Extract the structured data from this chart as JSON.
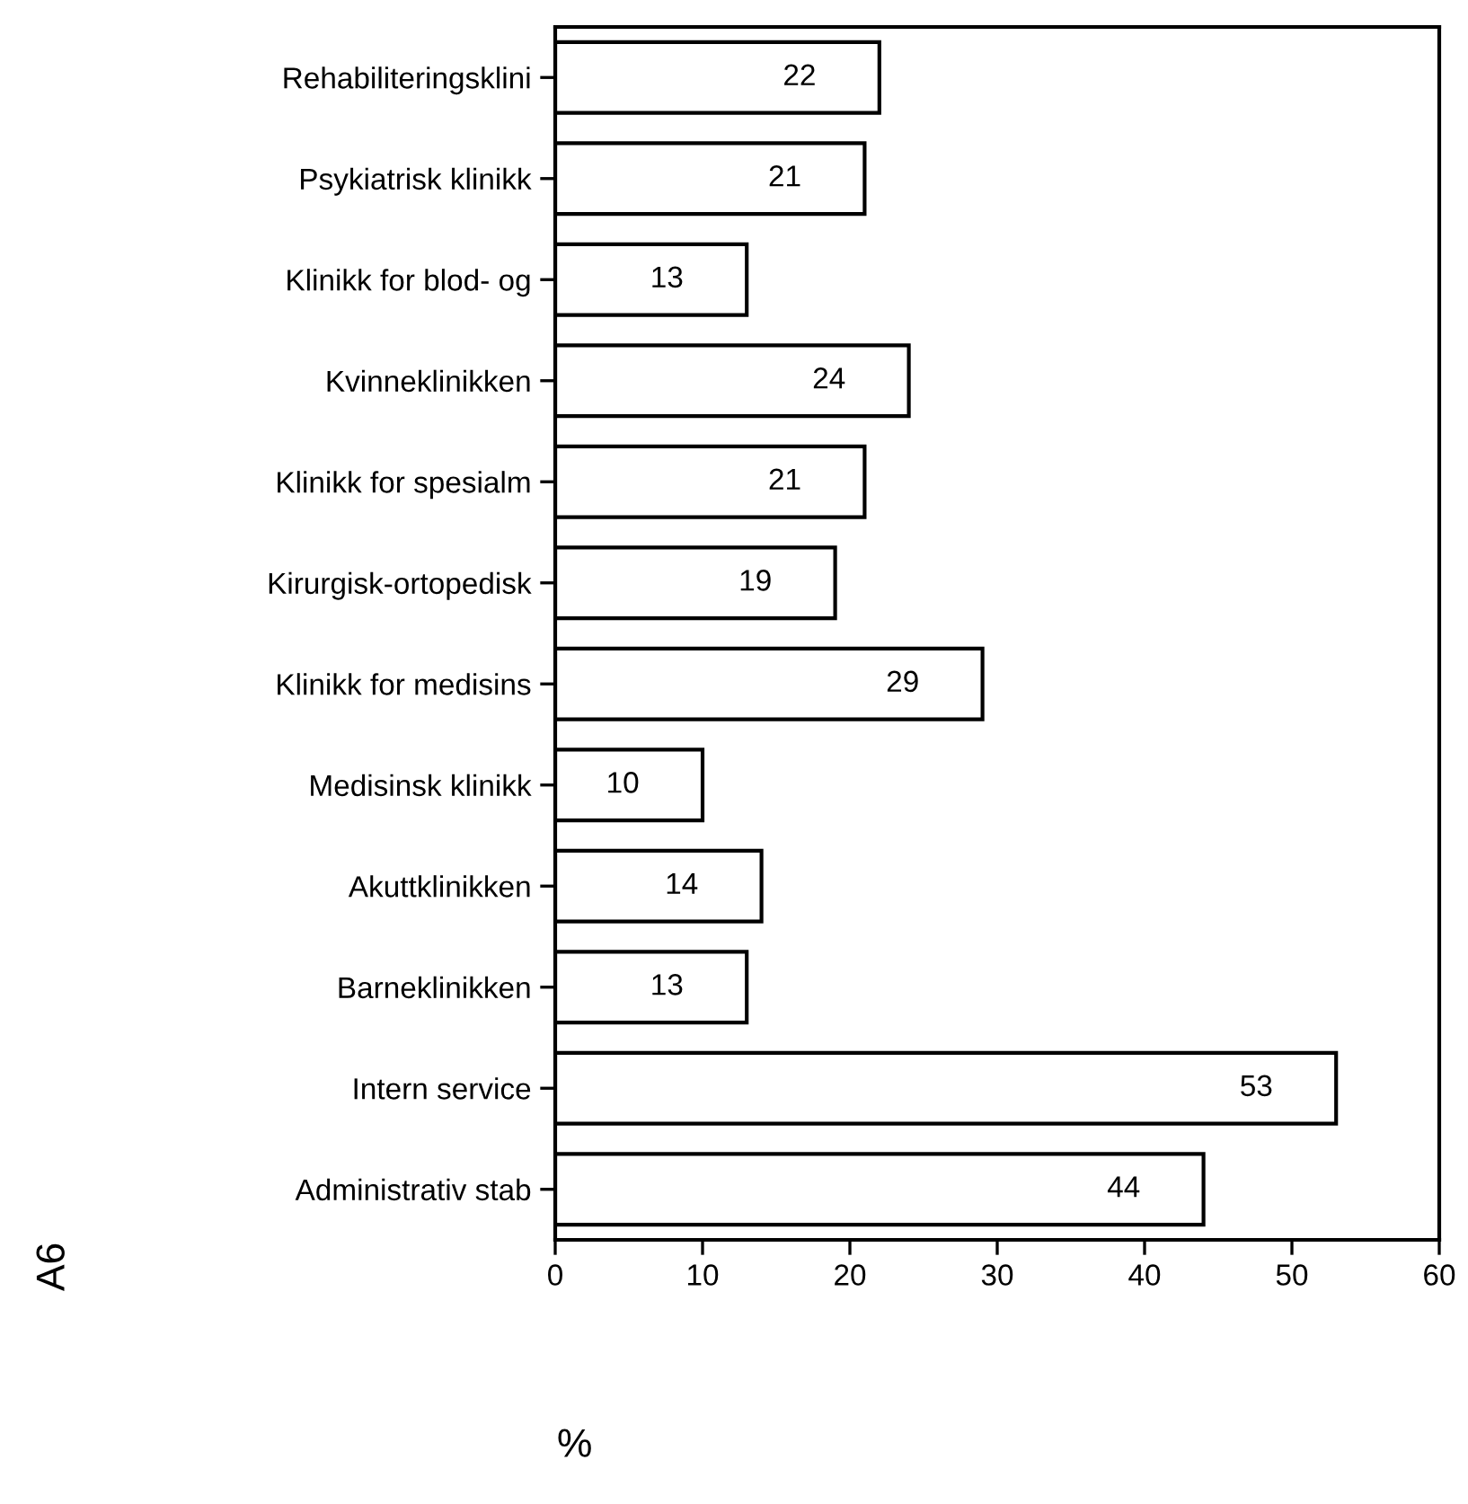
{
  "chart_data": {
    "type": "bar",
    "orientation": "horizontal",
    "categories": [
      "Rehabiliteringsklini",
      "Psykiatrisk klinikk",
      "Klinikk for blod- og",
      "Kvinneklinikken",
      "Klinikk for spesialm",
      "Kirurgisk-ortopedisk",
      "Klinikk for medisins",
      "Medisinsk klinikk",
      "Akuttklinikken",
      "Barneklinikken",
      "Intern service",
      "Administrativ stab"
    ],
    "values": [
      22,
      21,
      13,
      24,
      21,
      19,
      29,
      10,
      14,
      13,
      53,
      44
    ],
    "color": "#ffffff",
    "xlim": [
      0,
      60
    ],
    "xticks": [
      0,
      10,
      20,
      30,
      40,
      50,
      60
    ],
    "xlabel": "%",
    "annotations": [
      "A6"
    ],
    "data_labels": true,
    "grid": false,
    "legend": false
  }
}
